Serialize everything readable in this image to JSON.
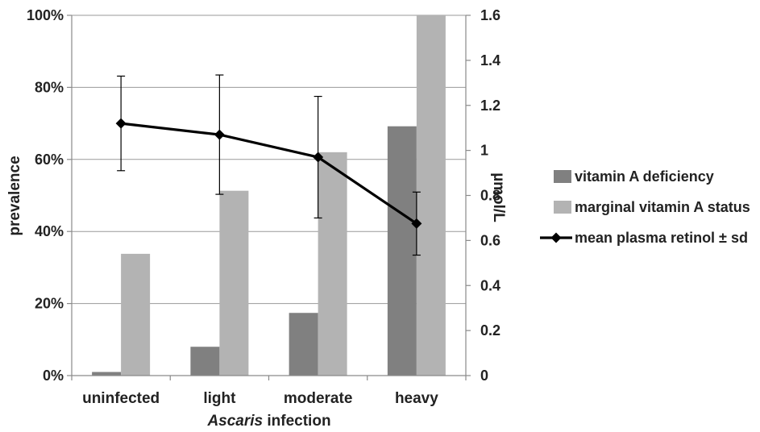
{
  "chart_data": {
    "type": "bar",
    "categories": [
      "uninfected",
      "light",
      "moderate",
      "heavy"
    ],
    "series": [
      {
        "name": "vitamin A deficiency",
        "axis": "left",
        "kind": "bar",
        "color": "#808080",
        "values": [
          1,
          8,
          17.4,
          69.2
        ]
      },
      {
        "name": "marginal vitamin A status",
        "axis": "left",
        "kind": "bar",
        "color": "#b3b3b3",
        "values": [
          33.8,
          51.3,
          62,
          100
        ]
      },
      {
        "name": "mean plasma retinol ± sd",
        "axis": "right",
        "kind": "line",
        "color": "#000000",
        "values": [
          1.12,
          1.07,
          0.97,
          0.675
        ],
        "sd": [
          0.21,
          0.265,
          0.27,
          0.14
        ]
      }
    ],
    "xlabel_italic": "Ascaris",
    "xlabel_rest": " infection",
    "ylabel": "prevalence",
    "y2label": "µmol/L",
    "ylim": [
      0,
      100
    ],
    "y2lim": [
      0,
      1.6
    ],
    "yticks": [
      "0%",
      "20%",
      "40%",
      "60%",
      "80%",
      "100%"
    ],
    "y2ticks": [
      "0",
      "0.2",
      "0.4",
      "0.6",
      "0.8",
      "1",
      "1.2",
      "1.4",
      "1.6"
    ],
    "grid": true,
    "legend_position": "right"
  }
}
